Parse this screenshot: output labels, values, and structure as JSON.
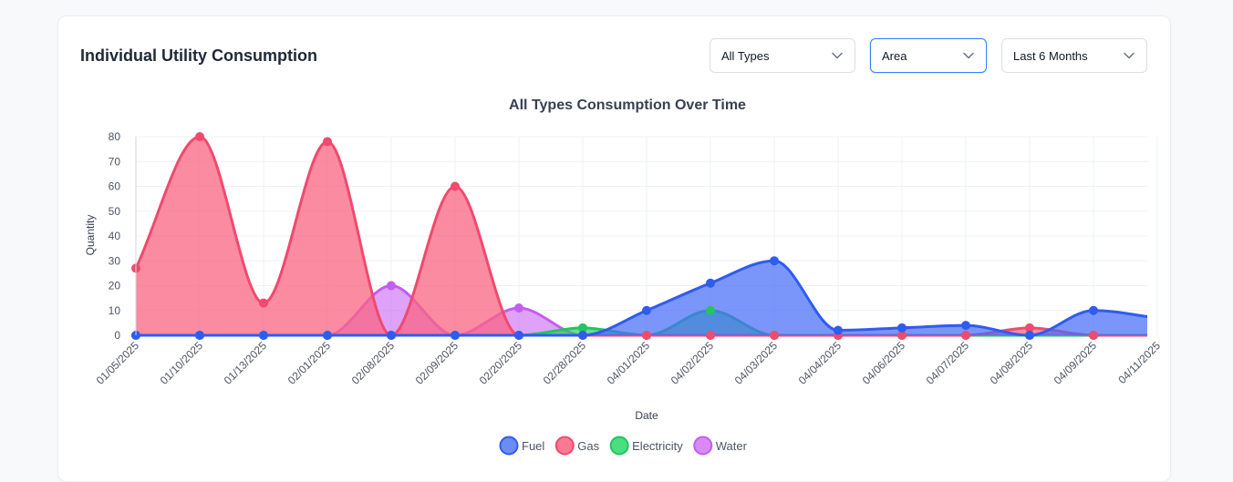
{
  "header": {
    "title": "Individual Utility Consumption"
  },
  "filters": {
    "type": "All Types",
    "chart_style": "Area",
    "range": "Last 6 Months"
  },
  "chart_data": {
    "type": "area",
    "title": "All Types Consumption Over Time",
    "xlabel": "Date",
    "ylabel": "Quantity",
    "ylim": [
      0,
      80
    ],
    "yticks": [
      0,
      10,
      20,
      30,
      40,
      50,
      60,
      70,
      80
    ],
    "grid": true,
    "legend_position": "bottom",
    "categories": [
      "01/05/2025",
      "01/10/2025",
      "01/13/2025",
      "02/01/2025",
      "02/08/2025",
      "02/09/2025",
      "02/20/2025",
      "02/28/2025",
      "04/01/2025",
      "04/02/2025",
      "04/03/2025",
      "04/04/2025",
      "04/06/2025",
      "04/07/2025",
      "04/08/2025",
      "04/09/2025",
      "04/11/2025"
    ],
    "series": [
      {
        "name": "Water",
        "color": "#c45cf2",
        "fill": "rgba(200,100,245,0.6)",
        "values": [
          0,
          0,
          0,
          0,
          20,
          0,
          11,
          0,
          0,
          0,
          0,
          0,
          0,
          0,
          0,
          0,
          0
        ]
      },
      {
        "name": "Electricity",
        "color": "#22c55e",
        "fill": "rgba(46,204,113,0.7)",
        "values": [
          0,
          0,
          0,
          0,
          0,
          0,
          0,
          3,
          0,
          10,
          0,
          0,
          0,
          0,
          0,
          0,
          0
        ]
      },
      {
        "name": "Gas",
        "color": "#f04a6e",
        "fill": "rgba(250,100,130,0.75)",
        "values": [
          27,
          80,
          13,
          78,
          0,
          60,
          0,
          0,
          0,
          0,
          0,
          0,
          0,
          0,
          3,
          0,
          0
        ]
      },
      {
        "name": "Fuel",
        "color": "#2f5cf0",
        "fill": "rgba(70,110,250,0.72)",
        "values": [
          0,
          0,
          0,
          0,
          0,
          0,
          0,
          0,
          10,
          21,
          30,
          2,
          3,
          4,
          0,
          10,
          7
        ]
      }
    ],
    "legend": [
      {
        "name": "Fuel",
        "color": "#2f5cf0",
        "fill": "#6b8cf5"
      },
      {
        "name": "Gas",
        "color": "#f04a6e",
        "fill": "#fb7a92"
      },
      {
        "name": "Electricity",
        "color": "#22c55e",
        "fill": "#4ade80"
      },
      {
        "name": "Water",
        "color": "#c45cf2",
        "fill": "#d68bf7"
      }
    ]
  }
}
